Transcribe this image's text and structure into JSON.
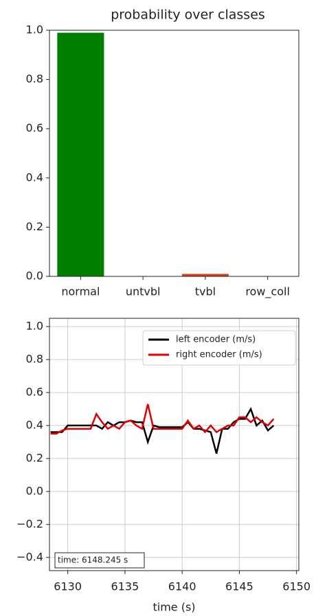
{
  "chart_data": [
    {
      "type": "bar",
      "title": "probability over classes",
      "categories": [
        "normal",
        "untvbl",
        "tvbl",
        "row_coll"
      ],
      "values": [
        0.99,
        0,
        0.01,
        0
      ],
      "colors": [
        "#007f00",
        "#007f00",
        "#d0401c",
        "#007f00"
      ],
      "ylim": [
        0,
        1
      ],
      "yticks": [
        {
          "value": 0,
          "label": "0.0"
        },
        {
          "value": 0.2,
          "label": "0.2"
        },
        {
          "value": 0.4,
          "label": "0.4"
        },
        {
          "value": 0.6,
          "label": "0.6"
        },
        {
          "value": 0.8,
          "label": "0.8"
        },
        {
          "value": 1,
          "label": "1.0"
        }
      ],
      "grid": false
    },
    {
      "type": "line",
      "xlabel": "time (s)",
      "annotation": "time: 6148.245 s",
      "x": [
        6128.5,
        6129,
        6129.5,
        6130,
        6130.5,
        6131,
        6131.5,
        6132,
        6132.5,
        6133,
        6133.5,
        6134,
        6134.5,
        6135,
        6135.5,
        6136,
        6136.5,
        6137,
        6137.5,
        6138,
        6138.5,
        6139,
        6139.5,
        6140,
        6140.5,
        6141,
        6141.5,
        6142,
        6142.5,
        6143,
        6143.5,
        6144,
        6144.5,
        6145,
        6145.5,
        6146,
        6146.5,
        6147,
        6147.5,
        6148
      ],
      "series": [
        {
          "name": "left encoder (m/s)",
          "color": "#000000",
          "values": [
            0.36,
            0.36,
            0.36,
            0.4,
            0.4,
            0.4,
            0.4,
            0.4,
            0.4,
            0.38,
            0.42,
            0.4,
            0.42,
            0.42,
            0.43,
            0.42,
            0.42,
            0.3,
            0.4,
            0.39,
            0.39,
            0.39,
            0.39,
            0.39,
            0.42,
            0.38,
            0.38,
            0.37,
            0.36,
            0.23,
            0.38,
            0.38,
            0.42,
            0.44,
            0.44,
            0.5,
            0.4,
            0.43,
            0.37,
            0.4
          ]
        },
        {
          "name": "right encoder (m/s)",
          "color": "#e00000",
          "values": [
            0.35,
            0.35,
            0.37,
            0.38,
            0.38,
            0.38,
            0.38,
            0.38,
            0.47,
            0.42,
            0.38,
            0.4,
            0.38,
            0.42,
            0.43,
            0.4,
            0.38,
            0.53,
            0.38,
            0.38,
            0.38,
            0.38,
            0.38,
            0.38,
            0.43,
            0.38,
            0.4,
            0.36,
            0.4,
            0.36,
            0.38,
            0.4,
            0.4,
            0.45,
            0.45,
            0.42,
            0.45,
            0.42,
            0.4,
            0.44
          ]
        }
      ],
      "xlim": [
        6128.4,
        6150.2
      ],
      "xticks": [
        6130,
        6135,
        6140,
        6145,
        6150
      ],
      "ylim": [
        -0.48,
        1.05
      ],
      "yticks": [
        {
          "value": -0.4,
          "label": "−0.4"
        },
        {
          "value": -0.2,
          "label": "−0.2"
        },
        {
          "value": 0,
          "label": "0.0"
        },
        {
          "value": 0.2,
          "label": "0.2"
        },
        {
          "value": 0.4,
          "label": "0.4"
        },
        {
          "value": 0.6,
          "label": "0.6"
        },
        {
          "value": 0.8,
          "label": "0.8"
        },
        {
          "value": 1,
          "label": "1.0"
        }
      ],
      "grid": true,
      "legend": "upper right"
    }
  ]
}
